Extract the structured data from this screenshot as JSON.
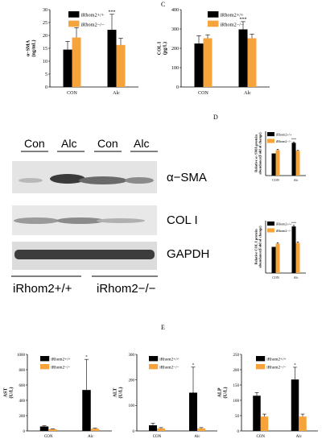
{
  "panel_letters": {
    "c": "C",
    "d": "D",
    "e": "E"
  },
  "colors": {
    "wt": "#000000",
    "ko": "#f5a33a"
  },
  "blot": {
    "lane_groups": [
      "Con",
      "Alc",
      "Con",
      "Alc"
    ],
    "genotypes": [
      "iRhom2+/+",
      "iRhom2−/−"
    ],
    "proteins": [
      "α−SMA",
      "COL I",
      "GAPDH"
    ]
  },
  "chart_data": [
    {
      "id": "c1",
      "type": "bar",
      "ylabel": "α−SMA\n(ng/mL)",
      "categories": [
        "CON",
        "Alc"
      ],
      "series": [
        {
          "name": "iRhom2+/+",
          "values": [
            14.5,
            22.2
          ],
          "errors": [
            3.2,
            6
          ]
        },
        {
          "name": "iRhom2−/−",
          "values": [
            19.2,
            16.3
          ],
          "errors": [
            3.8,
            2.6
          ]
        }
      ],
      "ylim": [
        0,
        30
      ],
      "yticks": [
        0,
        5,
        10,
        15,
        20,
        25,
        30
      ],
      "sig": [
        "",
        "***"
      ],
      "legend": "top-right"
    },
    {
      "id": "c2",
      "type": "bar",
      "ylabel": "COL I\n(pg/L)",
      "categories": [
        "CON",
        "Alc"
      ],
      "series": [
        {
          "name": "iRhom2+/+",
          "values": [
            225,
            298
          ],
          "errors": [
            40,
            40
          ]
        },
        {
          "name": "iRhom2−/−",
          "values": [
            252,
            252
          ],
          "errors": [
            18,
            22
          ]
        }
      ],
      "ylim": [
        0,
        400
      ],
      "yticks": [
        0,
        100,
        200,
        300,
        400
      ],
      "sig": [
        "",
        "***"
      ],
      "legend": "top-right"
    },
    {
      "id": "d1",
      "type": "bar",
      "ylabel": "Relative α−SMA protein\nabundance(Fold of change)",
      "categories": [
        "CON",
        "Alc"
      ],
      "series": [
        {
          "name": "iRhom2+/+",
          "values": [
            1.0,
            1.48
          ],
          "errors": [
            0,
            0.04
          ]
        },
        {
          "name": "iRhom2−/−",
          "values": [
            1.15,
            1.12
          ],
          "errors": [
            0.04,
            0.02
          ]
        }
      ],
      "ylim": [
        0,
        2.0
      ],
      "yticks": [],
      "sig": [
        "",
        "***"
      ],
      "legend": "top-right"
    },
    {
      "id": "d2",
      "type": "bar",
      "ylabel": "Relative COL I  protein\nabundance(Fold of change)",
      "categories": [
        "CON",
        "Alc"
      ],
      "series": [
        {
          "name": "iRhom2+/+",
          "values": [
            1.0,
            1.78
          ],
          "errors": [
            0,
            0.04
          ]
        },
        {
          "name": "iRhom2−/−",
          "values": [
            1.12,
            1.15
          ],
          "errors": [
            0.04,
            0.04
          ]
        }
      ],
      "ylim": [
        0,
        2.0
      ],
      "yticks": [],
      "sig": [
        "",
        "***"
      ],
      "legend": "top-right"
    },
    {
      "id": "e1",
      "type": "bar",
      "ylabel": "AST\n(U/L)",
      "categories": [
        "CON",
        "Alc"
      ],
      "series": [
        {
          "name": "iRhom2+/+",
          "values": [
            58,
            535
          ],
          "errors": [
            10,
            400
          ]
        },
        {
          "name": "iRhom2−/−",
          "values": [
            22,
            28
          ],
          "errors": [
            5,
            8
          ]
        }
      ],
      "ylim": [
        0,
        1000
      ],
      "yticks": [
        0,
        200,
        400,
        600,
        800,
        1000
      ],
      "sig": [
        "",
        "*"
      ],
      "legend": "top-right"
    },
    {
      "id": "e2",
      "type": "bar",
      "ylabel": "ALT\n(U/L)",
      "categories": [
        "CON",
        "Alc"
      ],
      "series": [
        {
          "name": "iRhom2+/+",
          "values": [
            22,
            150
          ],
          "errors": [
            8,
            100
          ]
        },
        {
          "name": "iRhom2−/−",
          "values": [
            10,
            10
          ],
          "errors": [
            3,
            3
          ]
        }
      ],
      "ylim": [
        0,
        300
      ],
      "yticks": [
        0,
        100,
        200,
        300
      ],
      "sig": [
        "",
        "*"
      ],
      "legend": "top-right"
    },
    {
      "id": "e3",
      "type": "bar",
      "ylabel": "ALP\n(U/L)",
      "categories": [
        "CON",
        "Alc"
      ],
      "series": [
        {
          "name": "iRhom2+/+",
          "values": [
            115,
            168
          ],
          "errors": [
            10,
            40
          ]
        },
        {
          "name": "iRhom2−/−",
          "values": [
            47,
            47
          ],
          "errors": [
            8,
            8
          ]
        }
      ],
      "ylim": [
        0,
        250
      ],
      "yticks": [
        0,
        50,
        100,
        150,
        200,
        250
      ],
      "sig": [
        "",
        "*"
      ],
      "legend": "top-right"
    }
  ]
}
